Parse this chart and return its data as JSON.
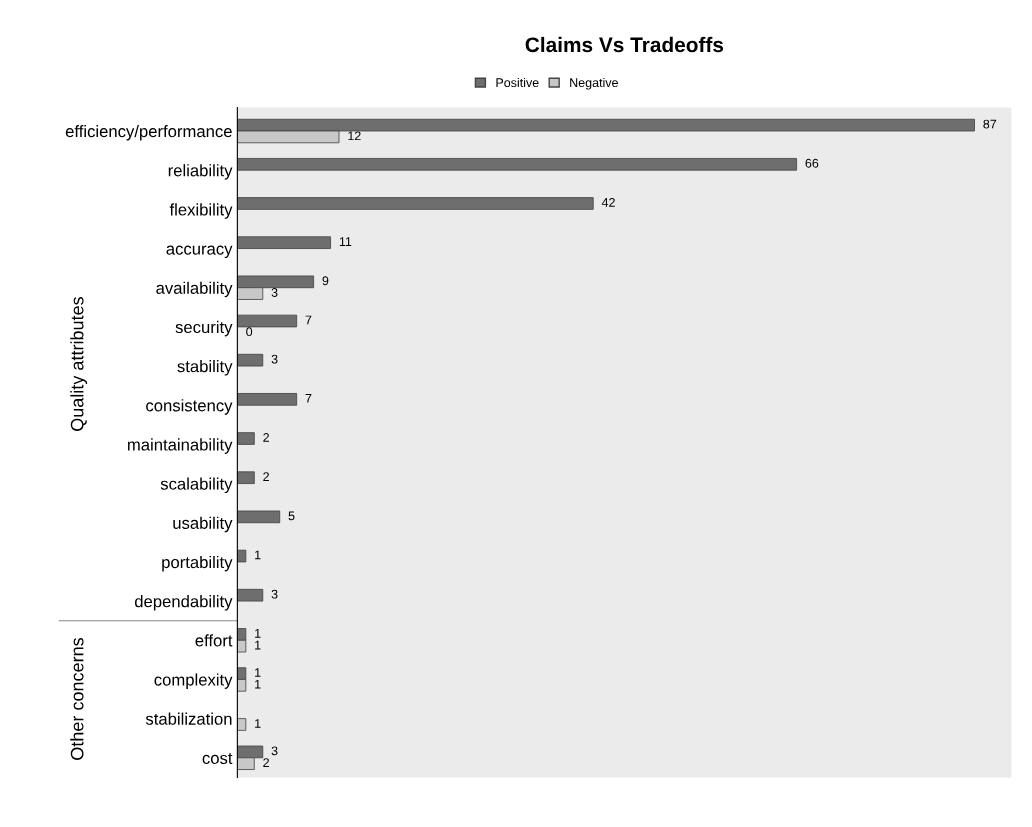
{
  "chart_data": {
    "type": "bar",
    "orientation": "horizontal",
    "title": "Claims Vs Tradeoffs",
    "categories": [
      "efficiency/performance",
      "reliability",
      "flexibility",
      "accuracy",
      "availability",
      "security",
      "stability",
      "consistency",
      "maintainability",
      "scalability",
      "usability",
      "portability",
      "dependability",
      "effort",
      "complexity",
      "stabilization",
      "cost"
    ],
    "series": [
      {
        "name": "Positive",
        "color": "#6e6e6e",
        "values": [
          87,
          66,
          42,
          11,
          9,
          7,
          3,
          7,
          2,
          2,
          5,
          1,
          3,
          1,
          1,
          null,
          3
        ]
      },
      {
        "name": "Negative",
        "color": "#c8c8c8",
        "values": [
          12,
          null,
          null,
          null,
          3,
          0,
          null,
          null,
          null,
          null,
          null,
          null,
          null,
          1,
          1,
          1,
          2
        ]
      }
    ],
    "data_labels": true,
    "legend": "top",
    "grid": false,
    "annotations": [
      "Quality attributes",
      "Other concerns"
    ]
  }
}
